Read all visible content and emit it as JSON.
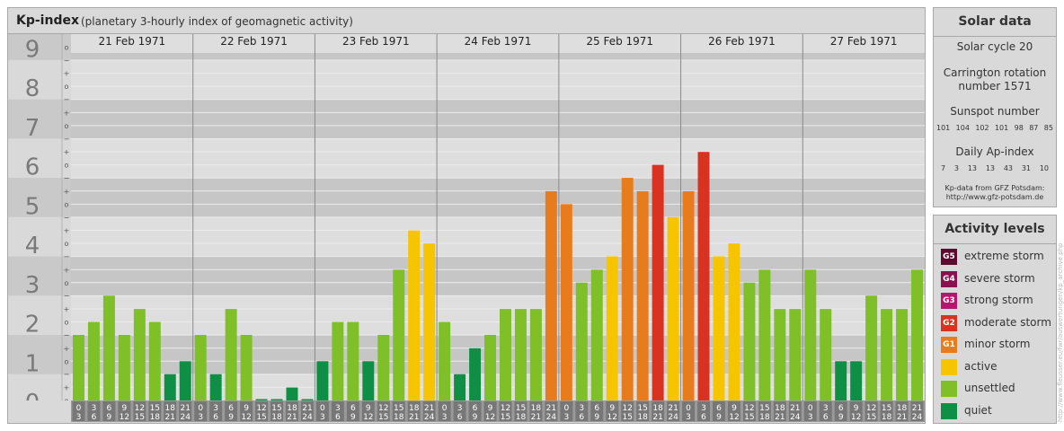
{
  "header": {
    "title": "Kp-index",
    "subtitle": "(planetary 3-hourly index of geomagnetic activity)"
  },
  "solar": {
    "title": "Solar data",
    "cycle": "Solar cycle 20",
    "carrington_line1": "Carrington rotation",
    "carrington_line2": "number 1571",
    "sunspot_label": "Sunspot number",
    "sunspot_values": [
      "101",
      "104",
      "102",
      "101",
      "98",
      "87",
      "85"
    ],
    "ap_label": "Daily Ap-index",
    "ap_values": [
      "7",
      "3",
      "13",
      "13",
      "43",
      "31",
      "10"
    ],
    "credit_line1": "Kp-data from GFZ Potsdam:",
    "credit_line2": "http://www.gfz-potsdam.de"
  },
  "activity": {
    "title": "Activity levels",
    "levels": [
      {
        "code": "G5",
        "label": "extreme storm",
        "color": "#5c0a2e"
      },
      {
        "code": "G4",
        "label": "severe storm",
        "color": "#8a1050"
      },
      {
        "code": "G3",
        "label": "strong storm",
        "color": "#b5176f"
      },
      {
        "code": "G2",
        "label": "moderate storm",
        "color": "#d93220"
      },
      {
        "code": "G1",
        "label": "minor storm",
        "color": "#e87c1d"
      },
      {
        "code": "",
        "label": "active",
        "color": "#f7c500"
      },
      {
        "code": "",
        "label": "unsettled",
        "color": "#7fbf27"
      },
      {
        "code": "",
        "label": "quiet",
        "color": "#0e8f45"
      }
    ]
  },
  "watermark": "http://www.fleusser.eu/fwr/auswertungen/kp_archive.php",
  "chart_data": {
    "type": "bar",
    "title": "Kp-index",
    "ylim": [
      0,
      9.33
    ],
    "y_ticks": [
      "0",
      "1",
      "2",
      "3",
      "4",
      "5",
      "6",
      "7",
      "8",
      "9"
    ],
    "sub_ticks": [
      "o",
      "+",
      "−"
    ],
    "days": [
      "21 Feb 1971",
      "22 Feb 1971",
      "23 Feb 1971",
      "24 Feb 1971",
      "25 Feb 1971",
      "26 Feb 1971",
      "27 Feb 1971"
    ],
    "interval_labels": [
      [
        "0",
        "3"
      ],
      [
        "3",
        "6"
      ],
      [
        "6",
        "9"
      ],
      [
        "9",
        "12"
      ],
      [
        "12",
        "15"
      ],
      [
        "15",
        "18"
      ],
      [
        "18",
        "21"
      ],
      [
        "21",
        "24"
      ]
    ],
    "colors": {
      "quiet": "#0e8f45",
      "unsettled": "#7fbf27",
      "active": "#f7c500",
      "minor": "#e87c1d",
      "moderate": "#d93220"
    },
    "values": [
      [
        1.67,
        2.0,
        2.67,
        1.67,
        2.33,
        2.0,
        0.67,
        1.0
      ],
      [
        1.67,
        0.67,
        2.33,
        1.67,
        0.0,
        0.0,
        0.33,
        0.0
      ],
      [
        1.0,
        2.0,
        2.0,
        1.0,
        1.67,
        3.33,
        4.33,
        4.0
      ],
      [
        2.0,
        0.67,
        1.33,
        1.67,
        2.33,
        2.33,
        2.33,
        5.33
      ],
      [
        5.0,
        3.0,
        3.33,
        3.67,
        5.67,
        5.33,
        6.0,
        4.67
      ],
      [
        5.33,
        6.33,
        3.67,
        4.0,
        3.0,
        3.33,
        2.33,
        2.33
      ],
      [
        3.33,
        2.33,
        1.0,
        1.0,
        2.67,
        2.33,
        2.33,
        3.33
      ]
    ]
  }
}
